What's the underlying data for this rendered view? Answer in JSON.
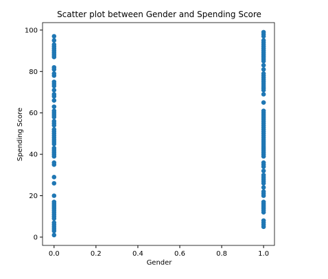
{
  "chart_data": {
    "type": "scatter",
    "title": "Scatter plot between Gender and Spending Score",
    "x_label": "Gender",
    "y_label": "Spending Score",
    "color": "#1f77b4",
    "xlim": [
      -0.055,
      1.052
    ],
    "ylim": [
      -4,
      103.6
    ],
    "xticks": [
      {
        "value": 0,
        "label": "0.0"
      },
      0.2,
      0.4,
      0.6,
      0.8,
      {
        "value": 1,
        "label": "1.0"
      }
    ],
    "yticks": [
      0,
      20,
      40,
      60,
      80,
      100
    ],
    "x": [
      0,
      0,
      0,
      0,
      0,
      0,
      0,
      0,
      0,
      0,
      0,
      0,
      0,
      0,
      0,
      0,
      0,
      0,
      0,
      0,
      0,
      0,
      0,
      0,
      0,
      0,
      0,
      0,
      0,
      0,
      0,
      0,
      0,
      0,
      0,
      0,
      0,
      0,
      0,
      0,
      0,
      0,
      0,
      0,
      0,
      0,
      0,
      0,
      0,
      0,
      0,
      0,
      0,
      0,
      0,
      0,
      0,
      0,
      0,
      0,
      0,
      1,
      1,
      1,
      1,
      1,
      1,
      1,
      1,
      1,
      1,
      1,
      1,
      1,
      1,
      1,
      1,
      1,
      1,
      1,
      1,
      1,
      1,
      1,
      1,
      1,
      1,
      1,
      1,
      1,
      1,
      1,
      1,
      1,
      1,
      1,
      1,
      1,
      1,
      1,
      1,
      1,
      1,
      1,
      1,
      1,
      1,
      1,
      1,
      1,
      1,
      1,
      1,
      1,
      1,
      1,
      1,
      1,
      1,
      1,
      1,
      1,
      1,
      1,
      1,
      1,
      1,
      1,
      1,
      1,
      1,
      1,
      1,
      1
    ],
    "values": [
      1,
      3,
      4,
      5,
      6,
      7,
      9,
      10,
      11,
      12,
      13,
      14,
      15,
      16,
      17,
      20,
      26,
      29,
      35,
      36,
      39,
      40,
      41,
      42,
      43,
      45,
      46,
      47,
      48,
      49,
      50,
      51,
      52,
      54,
      55,
      56,
      58,
      59,
      60,
      61,
      63,
      66,
      68,
      69,
      71,
      73,
      74,
      75,
      78,
      79,
      81,
      82,
      87,
      88,
      89,
      90,
      91,
      92,
      93,
      95,
      97,
      5,
      6,
      7,
      8,
      12,
      13,
      14,
      15,
      16,
      17,
      20,
      21,
      22,
      24,
      26,
      27,
      28,
      29,
      30,
      32,
      34,
      35,
      36,
      39,
      40,
      41,
      42,
      43,
      44,
      45,
      46,
      47,
      48,
      49,
      50,
      51,
      52,
      53,
      54,
      55,
      56,
      57,
      58,
      59,
      60,
      61,
      65,
      69,
      71,
      72,
      73,
      74,
      75,
      76,
      77,
      78,
      79,
      81,
      83,
      85,
      86,
      87,
      88,
      89,
      90,
      91,
      92,
      93,
      94,
      95,
      97,
      98,
      99
    ]
  }
}
